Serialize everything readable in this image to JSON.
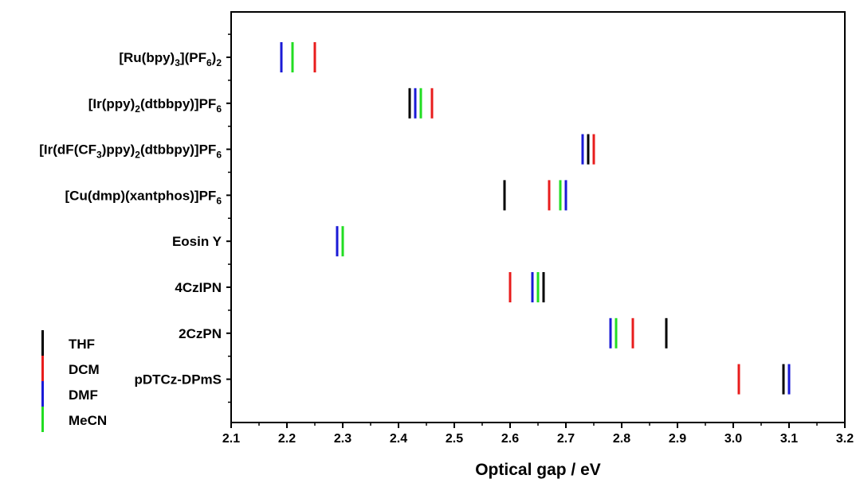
{
  "chart_data": {
    "type": "scatter",
    "xlabel": "Optical gap / eV",
    "ylabel": "",
    "xlim": [
      2.1,
      3.2
    ],
    "xticks": [
      "2.1",
      "2.2",
      "2.3",
      "2.4",
      "2.5",
      "2.6",
      "2.7",
      "2.8",
      "2.9",
      "3.0",
      "3.1",
      "3.2"
    ],
    "grid": false,
    "legend_position": "bottom-left",
    "categories": [
      {
        "label": "[Ru(bpy)3](PF6)2",
        "parts": [
          [
            "[Ru(bpy)",
            ""
          ],
          [
            "3",
            "sub"
          ],
          [
            "](PF",
            ""
          ],
          [
            "6",
            "sub"
          ],
          [
            ")",
            ""
          ],
          [
            "2",
            "sub"
          ]
        ]
      },
      {
        "label": "[Ir(ppy)2(dtbbpy)]PF6",
        "parts": [
          [
            "[Ir(ppy)",
            ""
          ],
          [
            "2",
            "sub"
          ],
          [
            "(dtbbpy)]PF",
            ""
          ],
          [
            "6",
            "sub"
          ]
        ]
      },
      {
        "label": "[Ir(dF(CF3)ppy)2(dtbbpy)]PF6",
        "parts": [
          [
            "[Ir(dF(CF",
            ""
          ],
          [
            "3",
            "sub"
          ],
          [
            ")ppy)",
            ""
          ],
          [
            "2",
            "sub"
          ],
          [
            "(dtbbpy)]PF",
            ""
          ],
          [
            "6",
            "sub"
          ]
        ]
      },
      {
        "label": "[Cu(dmp)(xantphos)]PF6",
        "parts": [
          [
            "[Cu(dmp)(xantphos)]PF",
            ""
          ],
          [
            "6",
            "sub"
          ]
        ]
      },
      {
        "label": "Eosin Y",
        "parts": [
          [
            "Eosin Y",
            ""
          ]
        ]
      },
      {
        "label": "4CzIPN",
        "parts": [
          [
            "4CzIPN",
            ""
          ]
        ]
      },
      {
        "label": "2CzPN",
        "parts": [
          [
            "2CzPN",
            ""
          ]
        ]
      },
      {
        "label": "pDTCz-DPmS",
        "parts": [
          [
            "pDTCz-DPmS",
            ""
          ]
        ]
      }
    ],
    "series": [
      {
        "name": "THF",
        "color": "#000000",
        "values": [
          null,
          2.42,
          2.74,
          2.59,
          null,
          2.66,
          2.88,
          3.09
        ]
      },
      {
        "name": "DCM",
        "color": "#e81c1c",
        "values": [
          2.25,
          2.46,
          2.75,
          2.67,
          null,
          2.6,
          2.82,
          3.01
        ]
      },
      {
        "name": "DMF",
        "color": "#1a1ad6",
        "values": [
          2.19,
          2.43,
          2.73,
          2.7,
          2.29,
          2.64,
          2.78,
          3.1
        ]
      },
      {
        "name": "MeCN",
        "color": "#22dd22",
        "values": [
          2.21,
          2.44,
          null,
          2.69,
          2.3,
          2.65,
          2.79,
          null
        ]
      }
    ]
  }
}
